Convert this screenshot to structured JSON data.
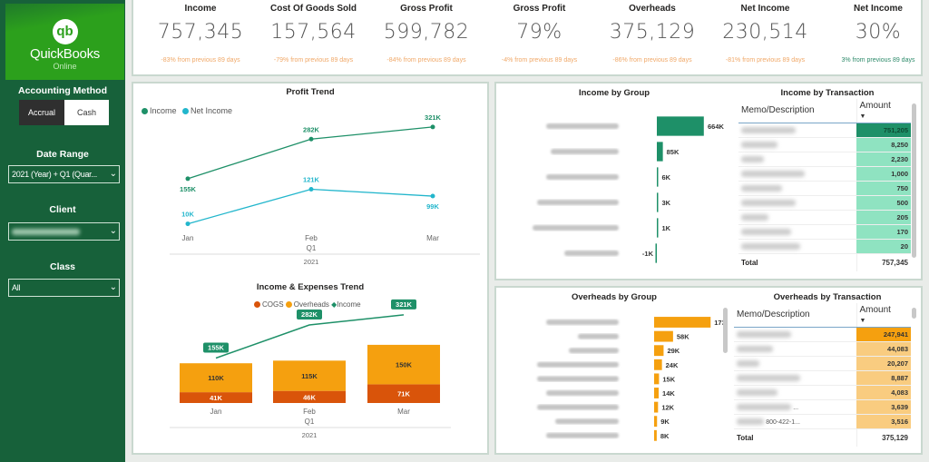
{
  "sidebar": {
    "logo": {
      "mark": "qb",
      "name": "QuickBooks",
      "sub": "Online"
    },
    "accounting_method": {
      "label": "Accounting Method",
      "options": [
        "Accrual",
        "Cash"
      ],
      "selected": "Accrual"
    },
    "date_range": {
      "label": "Date Range",
      "value": "2021 (Year) + Q1 (Quar..."
    },
    "client": {
      "label": "Client",
      "value": ""
    },
    "class": {
      "label": "Class",
      "value": "All"
    }
  },
  "kpis": [
    {
      "title": "Income",
      "value": "757,345",
      "change": "-83% from previous 89 days"
    },
    {
      "title": "Cost Of Goods Sold",
      "value": "157,564",
      "change": "-79% from previous 89 days"
    },
    {
      "title": "Gross Profit",
      "value": "599,782",
      "change": "-84% from previous 89 days"
    },
    {
      "title": "Gross Profit",
      "value": "79%",
      "change": "-4% from previous 89 days"
    },
    {
      "title": "Overheads",
      "value": "375,129",
      "change": "-86% from previous 89 days"
    },
    {
      "title": "Net Income",
      "value": "230,514",
      "change": "-81% from previous 89 days"
    },
    {
      "title": "Net Income",
      "value": "30%",
      "change": "3% from previous 89 days"
    }
  ],
  "colors": {
    "income": "#1e9068",
    "net_income": "#22b6cc",
    "cogs": "#d9540a",
    "overheads": "#f5a00f",
    "sidebar": "#17613a",
    "income_table": "#8fe3c1",
    "overheads_table": "#f9cc80"
  },
  "chart_data": [
    {
      "type": "line",
      "title": "Profit Trend",
      "categories": [
        "Jan",
        "Feb",
        "Mar"
      ],
      "x_group": "Q1",
      "x_year": "2021",
      "series": [
        {
          "name": "Income",
          "values": [
            155,
            282,
            321
          ],
          "labels": [
            "155K",
            "282K",
            "321K"
          ]
        },
        {
          "name": "Net Income",
          "values": [
            10,
            121,
            99
          ],
          "labels": [
            "10K",
            "121K",
            "99K"
          ]
        }
      ]
    },
    {
      "type": "bar",
      "title": "Income & Expenses Trend",
      "stacked": true,
      "categories": [
        "Jan",
        "Feb",
        "Mar"
      ],
      "x_group": "Q1",
      "x_year": "2021",
      "series": [
        {
          "name": "COGS",
          "values": [
            41,
            46,
            71
          ],
          "labels": [
            "41K",
            "46K",
            "71K"
          ]
        },
        {
          "name": "Overheads",
          "values": [
            110,
            115,
            150
          ],
          "labels": [
            "110K",
            "115K",
            "150K"
          ]
        },
        {
          "name": "Income",
          "type": "line",
          "values": [
            155,
            282,
            321
          ],
          "labels": [
            "155K",
            "282K",
            "321K"
          ]
        }
      ]
    },
    {
      "type": "bar",
      "orientation": "horizontal",
      "title": "Income by Group",
      "values": [
        664,
        85,
        6,
        3,
        1,
        -1
      ],
      "labels": [
        "664K",
        "85K",
        "6K",
        "3K",
        "1K",
        "-1K"
      ]
    },
    {
      "type": "bar",
      "orientation": "horizontal",
      "title": "Overheads by Group",
      "values": [
        173,
        58,
        29,
        24,
        15,
        14,
        12,
        9,
        8
      ],
      "labels": [
        "173K",
        "58K",
        "29K",
        "24K",
        "15K",
        "14K",
        "12K",
        "9K",
        "8K"
      ]
    }
  ],
  "income_table": {
    "title": "Income by Transaction",
    "headers": [
      "Memo/Description",
      "Amount"
    ],
    "amounts": [
      "751,205",
      "8,250",
      "2,230",
      "1,000",
      "750",
      "500",
      "205",
      "170",
      "20"
    ],
    "total_label": "Total",
    "total": "757,345"
  },
  "overheads_table": {
    "title": "Overheads by Transaction",
    "headers": [
      "Memo/Description",
      "Amount"
    ],
    "amounts": [
      "247,941",
      "44,083",
      "20,207",
      "8,887",
      "4,083",
      "3,639",
      "3,516"
    ],
    "partial_desc": [
      "",
      "",
      "",
      "",
      "",
      " ...",
      "800-422-1..."
    ],
    "total_label": "Total",
    "total": "375,129"
  }
}
